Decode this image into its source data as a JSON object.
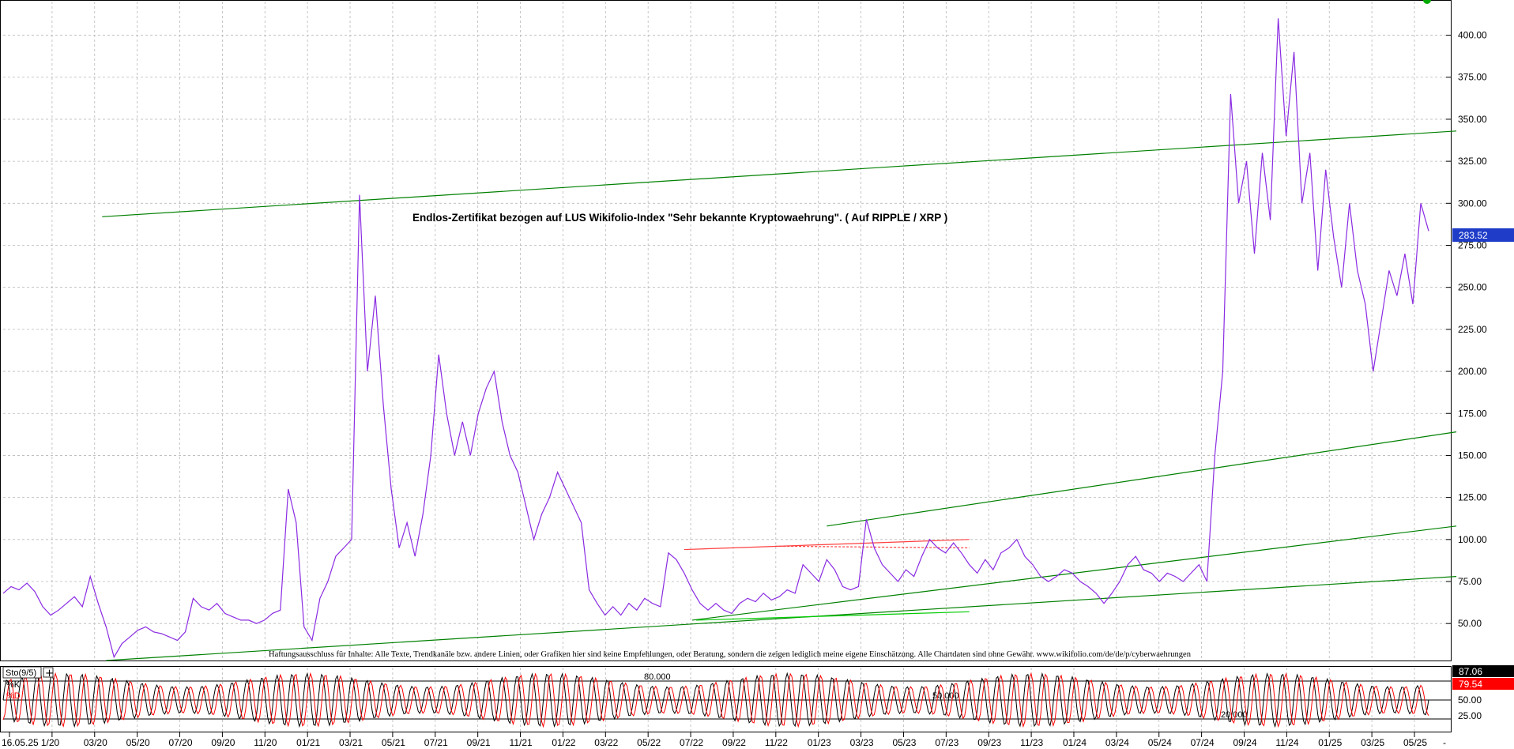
{
  "chart_data": [
    {
      "type": "line",
      "title": "Endlos-Zertifikat bezogen auf LUS Wikifolio-Index \"Sehr bekannte Kryptowaehrung\". ( Auf RIPPLE / XRP )",
      "disclaimer": "Haftungsausschluss für Inhalte: Alle Texte, Trendkanäle bzw. andere Linien, oder Grafiken hier sind keine Empfehlungen, oder Beratung, sondern die zeigen lediglich meine eigene Einschätzung. Alle Chartdaten sind ohne Gewähr.  www.wikifolio.com/de/de/p/cyberwaehrungen",
      "x_tick_labels": [
        "16.05.25",
        "1/20",
        "03/20",
        "05/20",
        "07/20",
        "09/20",
        "11/20",
        "01/21",
        "03/21",
        "05/21",
        "07/21",
        "09/21",
        "11/21",
        "01/22",
        "03/22",
        "05/22",
        "07/22",
        "09/22",
        "11/22",
        "01/23",
        "03/23",
        "05/23",
        "07/23",
        "09/23",
        "11/23",
        "01/24",
        "03/24",
        "05/24",
        "07/24",
        "09/24",
        "11/24",
        "01/25",
        "03/25",
        "05/25"
      ],
      "y_ticks": [
        "400.00",
        "375.00",
        "350.00",
        "325.00",
        "300.00",
        "275.00",
        "250.00",
        "225.00",
        "200.00",
        "175.00",
        "150.00",
        "125.00",
        "100.00",
        "75.00",
        "50.00"
      ],
      "ylim": [
        28,
        420
      ],
      "grid": true,
      "last_value_label": "283.52",
      "series": [
        {
          "color": "#8a2be2",
          "points": [
            [
              0,
              68
            ],
            [
              2,
              72
            ],
            [
              4,
              70
            ],
            [
              6,
              74
            ],
            [
              8,
              69
            ],
            [
              10,
              60
            ],
            [
              12,
              55
            ],
            [
              14,
              58
            ],
            [
              16,
              62
            ],
            [
              18,
              66
            ],
            [
              20,
              60
            ],
            [
              22,
              78
            ],
            [
              24,
              62
            ],
            [
              26,
              48
            ],
            [
              28,
              30
            ],
            [
              30,
              38
            ],
            [
              32,
              42
            ],
            [
              34,
              46
            ],
            [
              36,
              48
            ],
            [
              38,
              45
            ],
            [
              40,
              44
            ],
            [
              42,
              42
            ],
            [
              44,
              40
            ],
            [
              46,
              45
            ],
            [
              48,
              65
            ],
            [
              50,
              60
            ],
            [
              52,
              58
            ],
            [
              54,
              62
            ],
            [
              56,
              56
            ],
            [
              58,
              54
            ],
            [
              60,
              52
            ],
            [
              62,
              52
            ],
            [
              64,
              50
            ],
            [
              66,
              52
            ],
            [
              68,
              56
            ],
            [
              70,
              58
            ],
            [
              72,
              130
            ],
            [
              74,
              110
            ],
            [
              76,
              48
            ],
            [
              78,
              40
            ],
            [
              80,
              65
            ],
            [
              82,
              75
            ],
            [
              84,
              90
            ],
            [
              86,
              95
            ],
            [
              88,
              100
            ],
            [
              90,
              305
            ],
            [
              92,
              200
            ],
            [
              94,
              245
            ],
            [
              96,
              180
            ],
            [
              98,
              130
            ],
            [
              100,
              95
            ],
            [
              102,
              110
            ],
            [
              104,
              90
            ],
            [
              106,
              115
            ],
            [
              108,
              150
            ],
            [
              110,
              210
            ],
            [
              112,
              175
            ],
            [
              114,
              150
            ],
            [
              116,
              170
            ],
            [
              118,
              150
            ],
            [
              120,
              175
            ],
            [
              122,
              190
            ],
            [
              124,
              200
            ],
            [
              126,
              170
            ],
            [
              128,
              150
            ],
            [
              130,
              140
            ],
            [
              132,
              120
            ],
            [
              134,
              100
            ],
            [
              136,
              115
            ],
            [
              138,
              125
            ],
            [
              140,
              140
            ],
            [
              142,
              130
            ],
            [
              144,
              120
            ],
            [
              146,
              110
            ],
            [
              148,
              70
            ],
            [
              150,
              62
            ],
            [
              152,
              55
            ],
            [
              154,
              60
            ],
            [
              156,
              55
            ],
            [
              158,
              62
            ],
            [
              160,
              58
            ],
            [
              162,
              65
            ],
            [
              164,
              62
            ],
            [
              166,
              60
            ],
            [
              168,
              92
            ],
            [
              170,
              88
            ],
            [
              172,
              80
            ],
            [
              174,
              70
            ],
            [
              176,
              62
            ],
            [
              178,
              58
            ],
            [
              180,
              62
            ],
            [
              182,
              58
            ],
            [
              184,
              56
            ],
            [
              186,
              62
            ],
            [
              188,
              65
            ],
            [
              190,
              63
            ],
            [
              192,
              68
            ],
            [
              194,
              64
            ],
            [
              196,
              66
            ],
            [
              198,
              70
            ],
            [
              200,
              68
            ],
            [
              202,
              85
            ],
            [
              204,
              80
            ],
            [
              206,
              75
            ],
            [
              208,
              88
            ],
            [
              210,
              82
            ],
            [
              212,
              72
            ],
            [
              214,
              70
            ],
            [
              216,
              72
            ],
            [
              218,
              112
            ],
            [
              220,
              95
            ],
            [
              222,
              85
            ],
            [
              224,
              80
            ],
            [
              226,
              75
            ],
            [
              228,
              82
            ],
            [
              230,
              78
            ],
            [
              232,
              90
            ],
            [
              234,
              100
            ],
            [
              236,
              95
            ],
            [
              238,
              92
            ],
            [
              240,
              98
            ],
            [
              242,
              92
            ],
            [
              244,
              85
            ],
            [
              246,
              80
            ],
            [
              248,
              88
            ],
            [
              250,
              82
            ],
            [
              252,
              92
            ],
            [
              254,
              95
            ],
            [
              256,
              100
            ],
            [
              258,
              90
            ],
            [
              260,
              85
            ],
            [
              262,
              78
            ],
            [
              264,
              75
            ],
            [
              266,
              78
            ],
            [
              268,
              82
            ],
            [
              270,
              80
            ],
            [
              272,
              75
            ],
            [
              274,
              72
            ],
            [
              276,
              68
            ],
            [
              278,
              62
            ],
            [
              280,
              68
            ],
            [
              282,
              75
            ],
            [
              284,
              85
            ],
            [
              286,
              90
            ],
            [
              288,
              82
            ],
            [
              290,
              80
            ],
            [
              292,
              75
            ],
            [
              294,
              80
            ],
            [
              296,
              78
            ],
            [
              298,
              75
            ],
            [
              300,
              80
            ],
            [
              302,
              85
            ],
            [
              304,
              75
            ],
            [
              306,
              150
            ],
            [
              308,
              200
            ],
            [
              310,
              365
            ],
            [
              312,
              300
            ],
            [
              314,
              325
            ],
            [
              316,
              270
            ],
            [
              318,
              330
            ],
            [
              320,
              290
            ],
            [
              322,
              410
            ],
            [
              324,
              340
            ],
            [
              326,
              390
            ],
            [
              328,
              300
            ],
            [
              330,
              330
            ],
            [
              332,
              260
            ],
            [
              334,
              320
            ],
            [
              336,
              280
            ],
            [
              338,
              250
            ],
            [
              340,
              300
            ],
            [
              342,
              260
            ],
            [
              344,
              240
            ],
            [
              346,
              200
            ],
            [
              348,
              230
            ],
            [
              350,
              260
            ],
            [
              352,
              245
            ],
            [
              354,
              270
            ],
            [
              356,
              240
            ],
            [
              358,
              300
            ],
            [
              360,
              283.52
            ]
          ]
        }
      ],
      "trend_lines": [
        {
          "color": "#008000",
          "from": [
            25,
            292
          ],
          "to": [
            367,
            343
          ]
        },
        {
          "color": "#008000",
          "from": [
            26,
            28
          ],
          "to": [
            367,
            78
          ]
        },
        {
          "color": "#008000",
          "from": [
            208,
            108
          ],
          "to": [
            367,
            164
          ]
        },
        {
          "color": "#008000",
          "from": [
            174,
            52
          ],
          "to": [
            367,
            108
          ]
        },
        {
          "color": "#00cc00",
          "from": [
            175,
            52
          ],
          "to": [
            244,
            57
          ]
        },
        {
          "color": "#ff4040",
          "from": [
            172,
            94
          ],
          "to": [
            244,
            100
          ]
        },
        {
          "color": "#ff4040",
          "from": [
            195,
            96
          ],
          "to": [
            244,
            95
          ],
          "dashed": true
        }
      ]
    },
    {
      "type": "line",
      "indicator_label": "Sto(9/5)",
      "k_label": "%K",
      "d_label": "%D",
      "ylim": [
        0,
        100
      ],
      "level_labels": [
        "80.000",
        "50.000",
        "20.000"
      ],
      "y_ticks": [
        "50.00",
        "25.00"
      ],
      "k_value_label": "87.06",
      "d_value_label": "79.54",
      "cycles": 95,
      "series": [
        {
          "name": "%K",
          "color": "#000000"
        },
        {
          "name": "%D",
          "color": "#ff0000"
        }
      ]
    }
  ],
  "colors": {
    "price_line": "#8a2be2",
    "trend_green": "#008000",
    "trend_red": "#ff4040",
    "grid": "#b8b8b8",
    "last_value_bg": "#1e3cc8",
    "k_value_bg": "#000000",
    "d_value_bg": "#ff0000"
  }
}
